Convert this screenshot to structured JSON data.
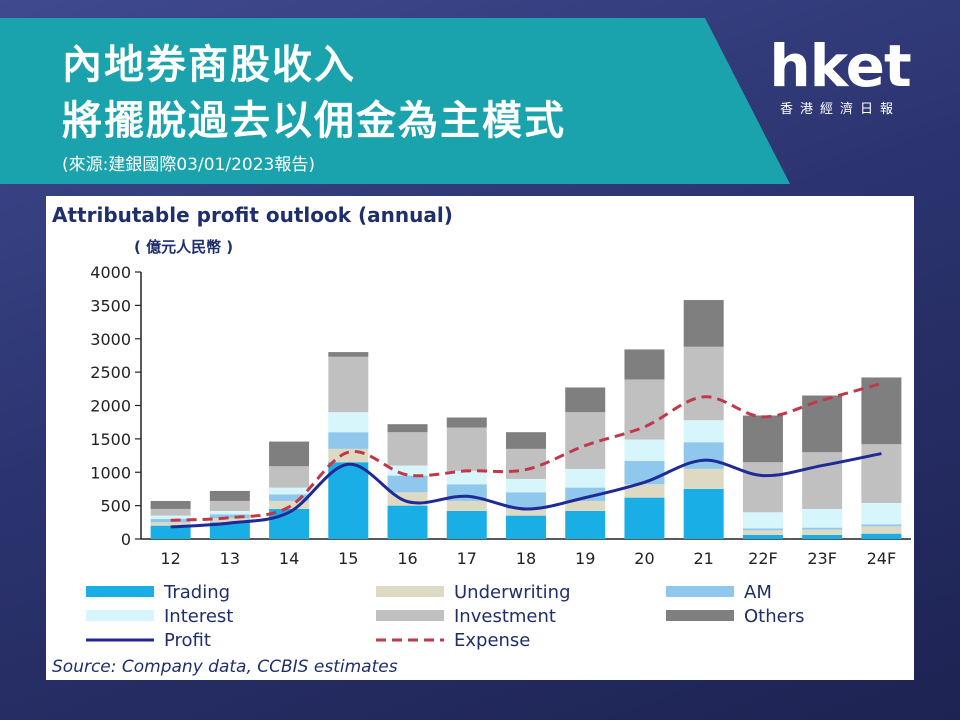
{
  "header": {
    "title_line1": "內地券商股收入",
    "title_line2": "將擺脫過去以佣金為主模式",
    "source_note": "(來源:建銀國際03/01/2023報告)"
  },
  "logo": {
    "main": "hket",
    "sub": "香港經濟日報"
  },
  "colors": {
    "banner": "#1aa3ad",
    "Trading": "#19aee6",
    "Underwriting": "#ddd9c3",
    "AM": "#8fc8ec",
    "Interest": "#d6f6fb",
    "Investment": "#c0c0c0",
    "Others": "#7f7f7f",
    "Profit": "#1f2a96",
    "Expense": "#c0394b"
  },
  "chart_data": {
    "type": "bar",
    "stacked": true,
    "title": "Attributable profit outlook (annual)",
    "unit_label": "( 億元人民幣 )",
    "source": "Source: Company data, CCBIS estimates",
    "categories": [
      "12",
      "13",
      "14",
      "15",
      "16",
      "17",
      "18",
      "19",
      "20",
      "21",
      "22F",
      "23F",
      "24F"
    ],
    "ylim": [
      0,
      4000
    ],
    "yticks": [
      0,
      500,
      1000,
      1500,
      2000,
      2500,
      3000,
      3500,
      4000
    ],
    "series": [
      {
        "name": "Trading",
        "kind": "bar",
        "values": [
          200,
          250,
          450,
          1150,
          500,
          420,
          350,
          420,
          620,
          750,
          60,
          60,
          80
        ]
      },
      {
        "name": "Underwriting",
        "kind": "bar",
        "values": [
          50,
          60,
          120,
          200,
          200,
          150,
          100,
          150,
          200,
          300,
          70,
          80,
          110
        ]
      },
      {
        "name": "AM",
        "kind": "bar",
        "values": [
          50,
          60,
          100,
          250,
          250,
          250,
          250,
          200,
          350,
          400,
          30,
          30,
          30
        ]
      },
      {
        "name": "Interest",
        "kind": "bar",
        "values": [
          50,
          50,
          100,
          300,
          150,
          200,
          200,
          280,
          320,
          330,
          240,
          280,
          320
        ]
      },
      {
        "name": "Investment",
        "kind": "bar",
        "values": [
          100,
          150,
          320,
          830,
          500,
          650,
          450,
          850,
          900,
          1100,
          750,
          850,
          880
        ]
      },
      {
        "name": "Others",
        "kind": "bar",
        "values": [
          120,
          150,
          370,
          70,
          120,
          150,
          250,
          370,
          450,
          700,
          700,
          850,
          1000
        ]
      },
      {
        "name": "Profit",
        "kind": "line",
        "values": [
          180,
          240,
          400,
          1120,
          560,
          640,
          450,
          620,
          850,
          1180,
          950,
          1100,
          1280
        ]
      },
      {
        "name": "Expense",
        "kind": "line",
        "values": [
          280,
          320,
          480,
          1300,
          960,
          1020,
          1040,
          1400,
          1680,
          2130,
          1830,
          2080,
          2330
        ]
      }
    ],
    "legend": [
      "Trading",
      "Underwriting",
      "AM",
      "Interest",
      "Investment",
      "Others",
      "Profit",
      "Expense"
    ],
    "legend_position": "bottom",
    "grid": false
  }
}
